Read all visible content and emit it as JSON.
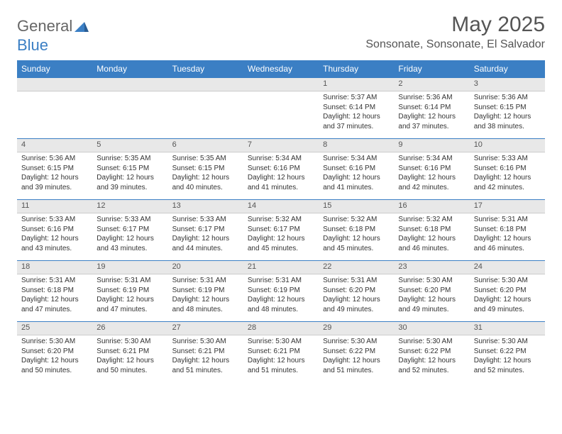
{
  "logo": {
    "general": "General",
    "blue": "Blue"
  },
  "title": "May 2025",
  "location": "Sonsonate, Sonsonate, El Salvador",
  "weekdays": [
    "Sunday",
    "Monday",
    "Tuesday",
    "Wednesday",
    "Thursday",
    "Friday",
    "Saturday"
  ],
  "header_bg": "#3b7fc4",
  "header_fg": "#ffffff",
  "daynum_bg": "#e8e8e8",
  "border_color": "#3b7fc4",
  "weeks": [
    {
      "nums": [
        "",
        "",
        "",
        "",
        "1",
        "2",
        "3"
      ],
      "cells": [
        null,
        null,
        null,
        null,
        {
          "sr": "Sunrise: 5:37 AM",
          "ss": "Sunset: 6:14 PM",
          "d1": "Daylight: 12 hours",
          "d2": "and 37 minutes."
        },
        {
          "sr": "Sunrise: 5:36 AM",
          "ss": "Sunset: 6:14 PM",
          "d1": "Daylight: 12 hours",
          "d2": "and 37 minutes."
        },
        {
          "sr": "Sunrise: 5:36 AM",
          "ss": "Sunset: 6:15 PM",
          "d1": "Daylight: 12 hours",
          "d2": "and 38 minutes."
        }
      ]
    },
    {
      "nums": [
        "4",
        "5",
        "6",
        "7",
        "8",
        "9",
        "10"
      ],
      "cells": [
        {
          "sr": "Sunrise: 5:36 AM",
          "ss": "Sunset: 6:15 PM",
          "d1": "Daylight: 12 hours",
          "d2": "and 39 minutes."
        },
        {
          "sr": "Sunrise: 5:35 AM",
          "ss": "Sunset: 6:15 PM",
          "d1": "Daylight: 12 hours",
          "d2": "and 39 minutes."
        },
        {
          "sr": "Sunrise: 5:35 AM",
          "ss": "Sunset: 6:15 PM",
          "d1": "Daylight: 12 hours",
          "d2": "and 40 minutes."
        },
        {
          "sr": "Sunrise: 5:34 AM",
          "ss": "Sunset: 6:16 PM",
          "d1": "Daylight: 12 hours",
          "d2": "and 41 minutes."
        },
        {
          "sr": "Sunrise: 5:34 AM",
          "ss": "Sunset: 6:16 PM",
          "d1": "Daylight: 12 hours",
          "d2": "and 41 minutes."
        },
        {
          "sr": "Sunrise: 5:34 AM",
          "ss": "Sunset: 6:16 PM",
          "d1": "Daylight: 12 hours",
          "d2": "and 42 minutes."
        },
        {
          "sr": "Sunrise: 5:33 AM",
          "ss": "Sunset: 6:16 PM",
          "d1": "Daylight: 12 hours",
          "d2": "and 42 minutes."
        }
      ]
    },
    {
      "nums": [
        "11",
        "12",
        "13",
        "14",
        "15",
        "16",
        "17"
      ],
      "cells": [
        {
          "sr": "Sunrise: 5:33 AM",
          "ss": "Sunset: 6:16 PM",
          "d1": "Daylight: 12 hours",
          "d2": "and 43 minutes."
        },
        {
          "sr": "Sunrise: 5:33 AM",
          "ss": "Sunset: 6:17 PM",
          "d1": "Daylight: 12 hours",
          "d2": "and 43 minutes."
        },
        {
          "sr": "Sunrise: 5:33 AM",
          "ss": "Sunset: 6:17 PM",
          "d1": "Daylight: 12 hours",
          "d2": "and 44 minutes."
        },
        {
          "sr": "Sunrise: 5:32 AM",
          "ss": "Sunset: 6:17 PM",
          "d1": "Daylight: 12 hours",
          "d2": "and 45 minutes."
        },
        {
          "sr": "Sunrise: 5:32 AM",
          "ss": "Sunset: 6:18 PM",
          "d1": "Daylight: 12 hours",
          "d2": "and 45 minutes."
        },
        {
          "sr": "Sunrise: 5:32 AM",
          "ss": "Sunset: 6:18 PM",
          "d1": "Daylight: 12 hours",
          "d2": "and 46 minutes."
        },
        {
          "sr": "Sunrise: 5:31 AM",
          "ss": "Sunset: 6:18 PM",
          "d1": "Daylight: 12 hours",
          "d2": "and 46 minutes."
        }
      ]
    },
    {
      "nums": [
        "18",
        "19",
        "20",
        "21",
        "22",
        "23",
        "24"
      ],
      "cells": [
        {
          "sr": "Sunrise: 5:31 AM",
          "ss": "Sunset: 6:18 PM",
          "d1": "Daylight: 12 hours",
          "d2": "and 47 minutes."
        },
        {
          "sr": "Sunrise: 5:31 AM",
          "ss": "Sunset: 6:19 PM",
          "d1": "Daylight: 12 hours",
          "d2": "and 47 minutes."
        },
        {
          "sr": "Sunrise: 5:31 AM",
          "ss": "Sunset: 6:19 PM",
          "d1": "Daylight: 12 hours",
          "d2": "and 48 minutes."
        },
        {
          "sr": "Sunrise: 5:31 AM",
          "ss": "Sunset: 6:19 PM",
          "d1": "Daylight: 12 hours",
          "d2": "and 48 minutes."
        },
        {
          "sr": "Sunrise: 5:31 AM",
          "ss": "Sunset: 6:20 PM",
          "d1": "Daylight: 12 hours",
          "d2": "and 49 minutes."
        },
        {
          "sr": "Sunrise: 5:30 AM",
          "ss": "Sunset: 6:20 PM",
          "d1": "Daylight: 12 hours",
          "d2": "and 49 minutes."
        },
        {
          "sr": "Sunrise: 5:30 AM",
          "ss": "Sunset: 6:20 PM",
          "d1": "Daylight: 12 hours",
          "d2": "and 49 minutes."
        }
      ]
    },
    {
      "nums": [
        "25",
        "26",
        "27",
        "28",
        "29",
        "30",
        "31"
      ],
      "cells": [
        {
          "sr": "Sunrise: 5:30 AM",
          "ss": "Sunset: 6:20 PM",
          "d1": "Daylight: 12 hours",
          "d2": "and 50 minutes."
        },
        {
          "sr": "Sunrise: 5:30 AM",
          "ss": "Sunset: 6:21 PM",
          "d1": "Daylight: 12 hours",
          "d2": "and 50 minutes."
        },
        {
          "sr": "Sunrise: 5:30 AM",
          "ss": "Sunset: 6:21 PM",
          "d1": "Daylight: 12 hours",
          "d2": "and 51 minutes."
        },
        {
          "sr": "Sunrise: 5:30 AM",
          "ss": "Sunset: 6:21 PM",
          "d1": "Daylight: 12 hours",
          "d2": "and 51 minutes."
        },
        {
          "sr": "Sunrise: 5:30 AM",
          "ss": "Sunset: 6:22 PM",
          "d1": "Daylight: 12 hours",
          "d2": "and 51 minutes."
        },
        {
          "sr": "Sunrise: 5:30 AM",
          "ss": "Sunset: 6:22 PM",
          "d1": "Daylight: 12 hours",
          "d2": "and 52 minutes."
        },
        {
          "sr": "Sunrise: 5:30 AM",
          "ss": "Sunset: 6:22 PM",
          "d1": "Daylight: 12 hours",
          "d2": "and 52 minutes."
        }
      ]
    }
  ]
}
